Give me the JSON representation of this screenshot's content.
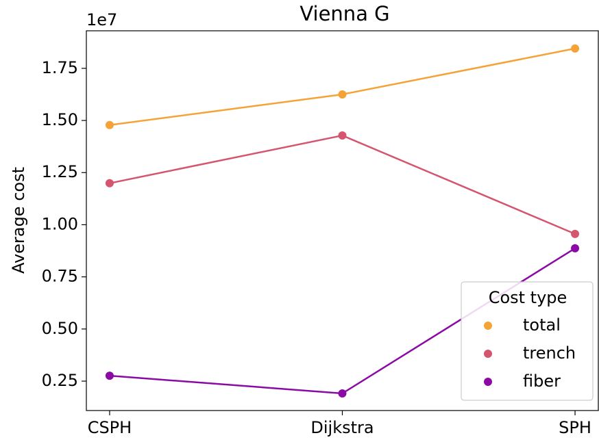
{
  "chart_data": {
    "type": "line",
    "title": "Vienna G",
    "ylabel": "Average cost",
    "y_offset_label": "1e7",
    "categories": [
      "CSPH",
      "Dijkstra",
      "SPH"
    ],
    "series": [
      {
        "name": "total",
        "color": "#f5a236",
        "values": [
          1.478,
          1.625,
          1.845
        ]
      },
      {
        "name": "trench",
        "color": "#d5546e",
        "values": [
          1.199,
          1.428,
          0.956
        ]
      },
      {
        "name": "fiber",
        "color": "#8b0aa5",
        "values": [
          0.276,
          0.191,
          0.887
        ]
      }
    ],
    "ylim": [
      0.109,
      1.93
    ],
    "yticks": [
      0.25,
      {
        "value": 0.5,
        "label": "0.50"
      },
      0.75,
      {
        "value": 1.0,
        "label": "1.00"
      },
      1.25,
      {
        "value": 1.5,
        "label": "1.50"
      },
      1.75
    ],
    "legend_title": "Cost type",
    "legend": "lower right",
    "grid": false
  }
}
